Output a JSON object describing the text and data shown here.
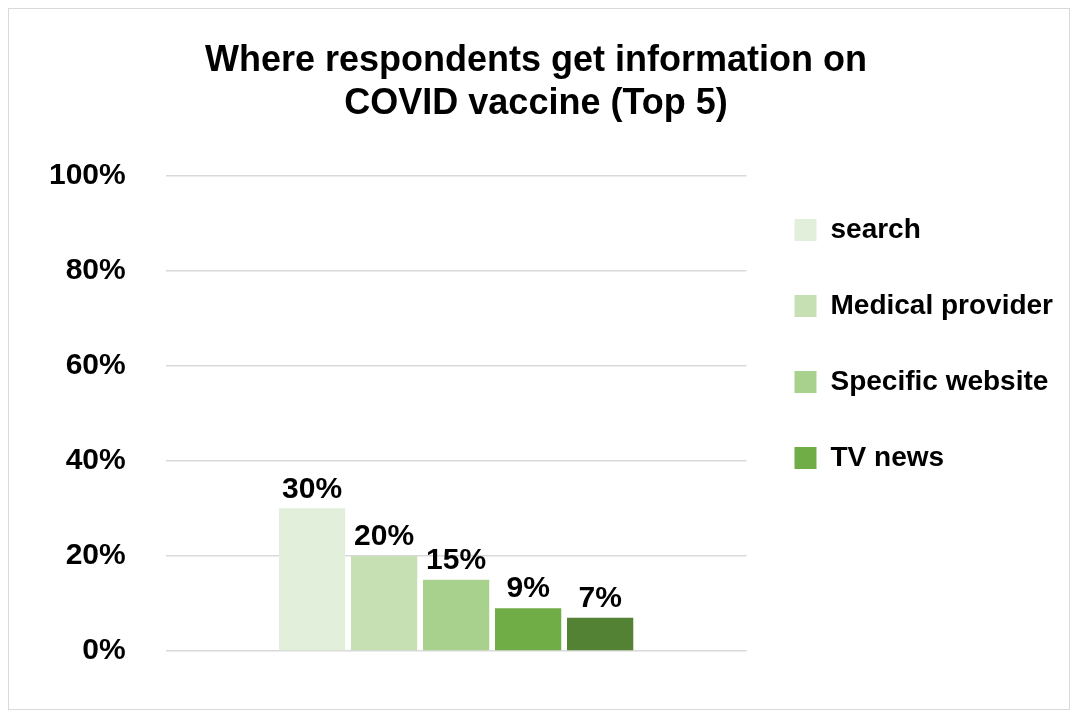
{
  "chart_data": {
    "type": "bar",
    "title": "Where respondents get information on COVID vaccine (Top 5)",
    "categories": [
      null
    ],
    "series": [
      {
        "name": "search",
        "color": "#e2efda",
        "values": [
          30
        ],
        "value_labels": [
          "30%"
        ]
      },
      {
        "name": "Medical provider",
        "color": "#c6e0b4",
        "values": [
          20
        ],
        "value_labels": [
          "20%"
        ]
      },
      {
        "name": "Specific website",
        "color": "#a9d18e",
        "values": [
          15
        ],
        "value_labels": [
          "15%"
        ]
      },
      {
        "name": "TV news",
        "color": "#70ad47",
        "values": [
          9
        ],
        "value_labels": [
          "9%"
        ]
      },
      {
        "color": "#548235",
        "values": [
          7
        ],
        "value_labels": [
          "7%"
        ]
      }
    ],
    "ylim": [
      0,
      100
    ],
    "yticks": [
      {
        "value": 0,
        "label": "0%"
      },
      {
        "value": 20,
        "label": "20%"
      },
      {
        "value": 40,
        "label": "40%"
      },
      {
        "value": 60,
        "label": "60%"
      },
      {
        "value": 80,
        "label": "80%"
      },
      {
        "value": 100,
        "label": "100%"
      }
    ],
    "grid": "y",
    "legend": "right"
  }
}
